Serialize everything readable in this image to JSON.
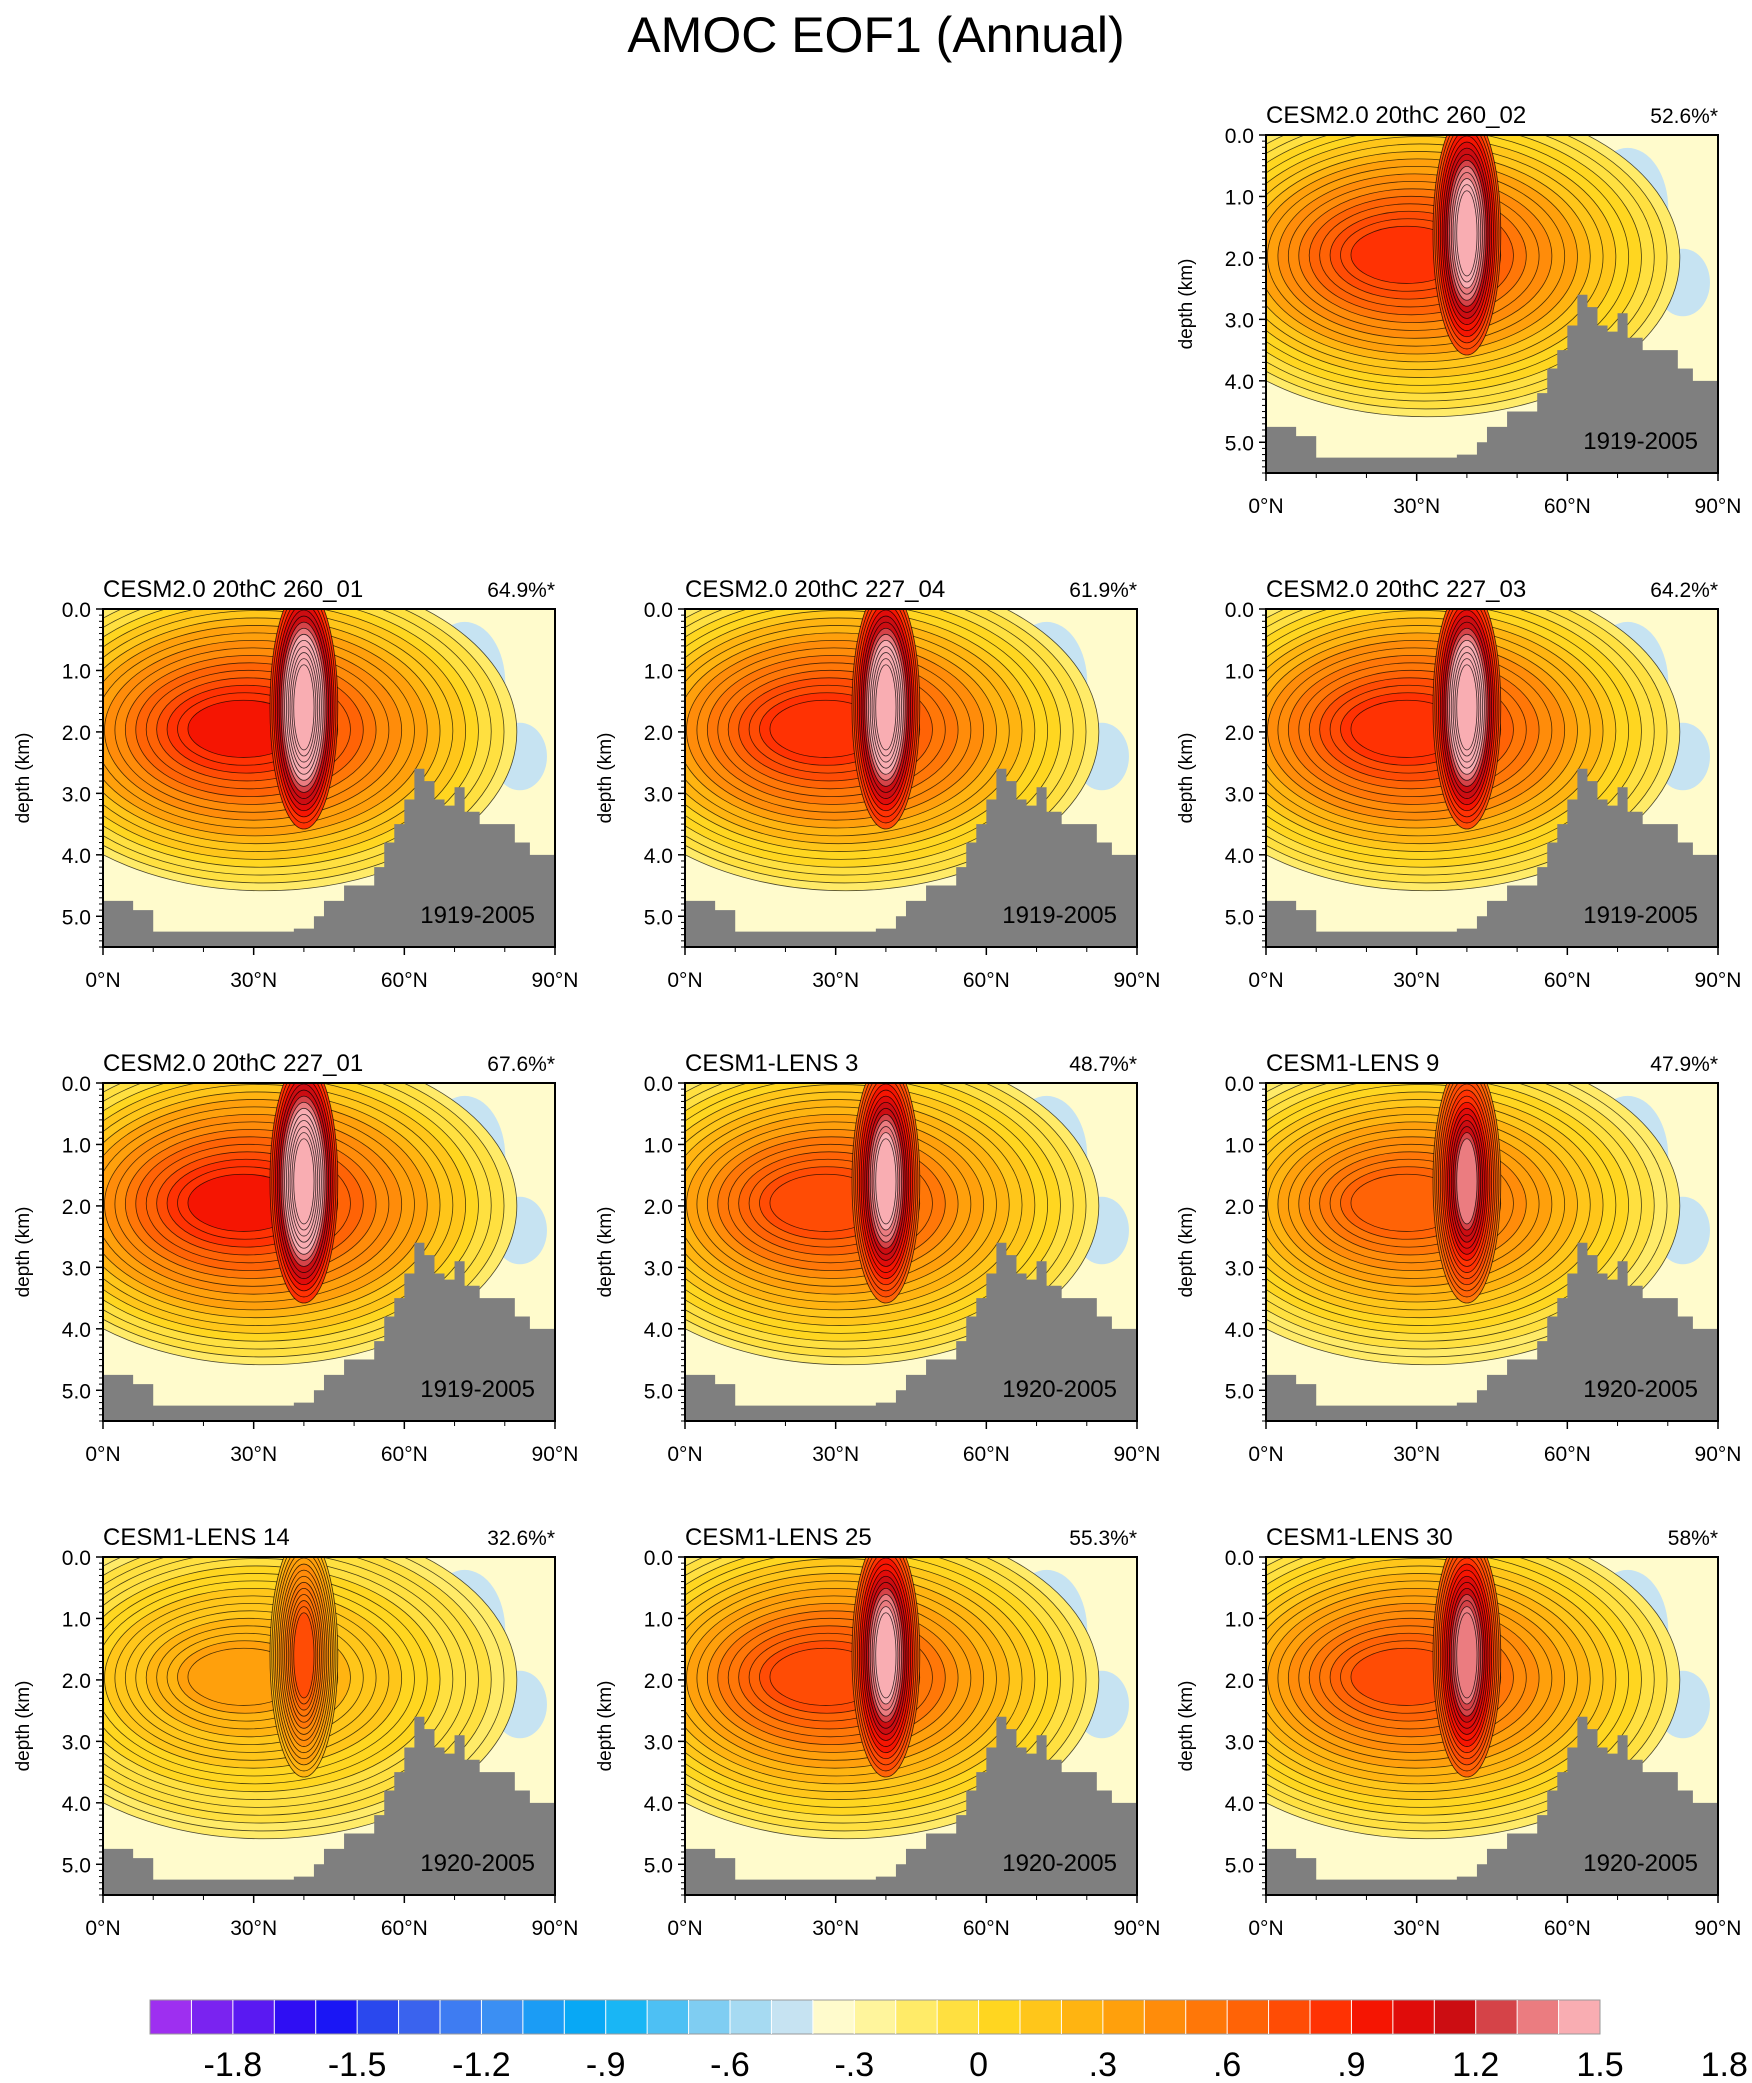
{
  "figure": {
    "title": "AMOC EOF1 (Annual)"
  },
  "axes": {
    "ylabel": "depth (km)",
    "yticks": [
      "0.0",
      "1.0",
      "2.0",
      "3.0",
      "4.0",
      "5.0"
    ],
    "xticks": [
      "0°N",
      "30°N",
      "60°N",
      "90°N"
    ],
    "xlim": [
      0,
      90
    ],
    "ylim": [
      5.5,
      0
    ]
  },
  "colors": {
    "land": "#7f7f7f",
    "frame": "#000000",
    "contour": "#000000"
  },
  "chart_data": [
    {
      "type": "heatmap",
      "title": "CESM2.0 20thC 260_02",
      "variance": "52.6%*",
      "period": "1919-2005",
      "max": 1.8
    },
    {
      "type": "heatmap",
      "title": "CESM2.0 20thC 260_01",
      "variance": "64.9%*",
      "period": "1919-2005",
      "max": 2.0
    },
    {
      "type": "heatmap",
      "title": "CESM2.0 20thC 227_04",
      "variance": "61.9%*",
      "period": "1919-2005",
      "max": 1.9
    },
    {
      "type": "heatmap",
      "title": "CESM2.0 20thC 227_03",
      "variance": "64.2%*",
      "period": "1919-2005",
      "max": 1.9
    },
    {
      "type": "heatmap",
      "title": "CESM2.0 20thC 227_01",
      "variance": "67.6%*",
      "period": "1919-2005",
      "max": 2.0
    },
    {
      "type": "heatmap",
      "title": "CESM1-LENS 3",
      "variance": "48.7%*",
      "period": "1920-2005",
      "max": 1.7
    },
    {
      "type": "heatmap",
      "title": "CESM1-LENS 9",
      "variance": "47.9%*",
      "period": "1920-2005",
      "max": 1.5
    },
    {
      "type": "heatmap",
      "title": "CESM1-LENS 14",
      "variance": "32.6%*",
      "period": "1920-2005",
      "max": 0.9
    },
    {
      "type": "heatmap",
      "title": "CESM1-LENS 25",
      "variance": "55.3%*",
      "period": "1920-2005",
      "max": 1.7
    },
    {
      "type": "heatmap",
      "title": "CESM1-LENS 30",
      "variance": "58%*",
      "period": "1920-2005",
      "max": 1.6
    }
  ],
  "colorbar": {
    "labels": [
      "-1.8",
      "-1.5",
      "-1.2",
      "-.9",
      "-.6",
      "-.3",
      "0",
      ".3",
      ".6",
      ".9",
      "1.2",
      "1.5",
      "1.8"
    ],
    "colors": [
      "#9e2ff0",
      "#7a23f0",
      "#5a19f2",
      "#2f0ef3",
      "#1a16f5",
      "#2a48ee",
      "#3a63ee",
      "#3e7cf2",
      "#3b8ff3",
      "#1b9cf5",
      "#08a8f5",
      "#19b6f5",
      "#4dc0f4",
      "#7fcdf2",
      "#a6daf2",
      "#c6e3f2",
      "#fffbcc",
      "#fff59c",
      "#ffeb68",
      "#ffe040",
      "#ffd620",
      "#ffc61a",
      "#ffb411",
      "#ffa00c",
      "#ff8c0a",
      "#ff7708",
      "#ff6306",
      "#ff4c05",
      "#ff3203",
      "#f51502",
      "#e00c0a",
      "#cc0d12",
      "#d54348",
      "#eb7c80",
      "#f9adb2"
    ]
  }
}
